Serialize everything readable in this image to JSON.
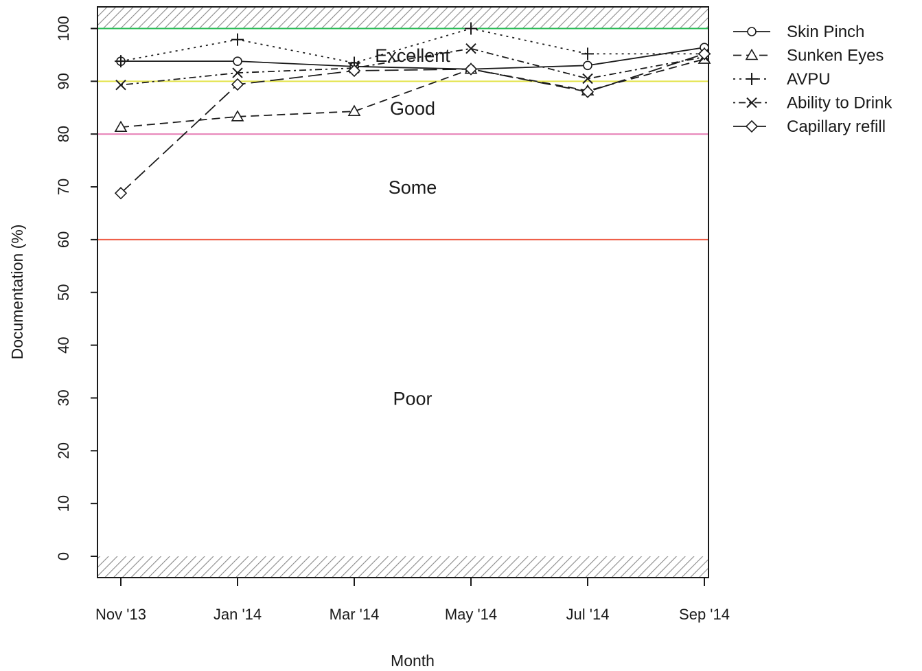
{
  "chart_data": {
    "type": "line",
    "title": "",
    "xlabel": "Month",
    "ylabel": "Documentation (%)",
    "categories": [
      "Nov '13",
      "Jan '14",
      "Mar '14",
      "May '14",
      "Jul '14",
      "Sep '14"
    ],
    "ylim": [
      -4,
      104
    ],
    "yticks": [
      0,
      10,
      20,
      30,
      40,
      50,
      60,
      70,
      80,
      90,
      100
    ],
    "grid": false,
    "legend_position": "right",
    "series": [
      {
        "name": "Skin Pinch",
        "marker": "circle",
        "line_style": "solid",
        "values": [
          93.8,
          93.8,
          92.8,
          92.3,
          93.0,
          96.4
        ]
      },
      {
        "name": "Sunken Eyes",
        "marker": "triangle",
        "line_style": "dashed",
        "values": [
          81.3,
          83.3,
          84.3,
          92.3,
          88.2,
          94.2
        ]
      },
      {
        "name": "AVPU",
        "marker": "plus",
        "line_style": "dotted",
        "values": [
          93.8,
          97.9,
          93.5,
          100.0,
          95.2,
          95.2
        ]
      },
      {
        "name": "Ability to Drink",
        "marker": "cross",
        "line_style": "dotdash",
        "values": [
          89.3,
          91.6,
          92.5,
          96.2,
          90.5,
          94.6
        ]
      },
      {
        "name": "Capillary refill",
        "marker": "diamond",
        "line_style": "longdash",
        "values": [
          68.8,
          89.4,
          92.0,
          92.3,
          88.0,
          95.2
        ]
      }
    ],
    "thresholds": [
      {
        "value": 100,
        "color": "#2ebd5a"
      },
      {
        "value": 90,
        "color": "#e3e34a"
      },
      {
        "value": 80,
        "color": "#e67ab3"
      },
      {
        "value": 60,
        "color": "#ef5b45"
      }
    ],
    "zones": [
      {
        "label": "Excellent",
        "value": 95
      },
      {
        "label": "Good",
        "value": 85
      },
      {
        "label": "Some",
        "value": 70
      },
      {
        "label": "Poor",
        "value": 30
      }
    ],
    "hatched_ranges": [
      [
        100,
        104
      ],
      [
        -4,
        0
      ]
    ]
  }
}
